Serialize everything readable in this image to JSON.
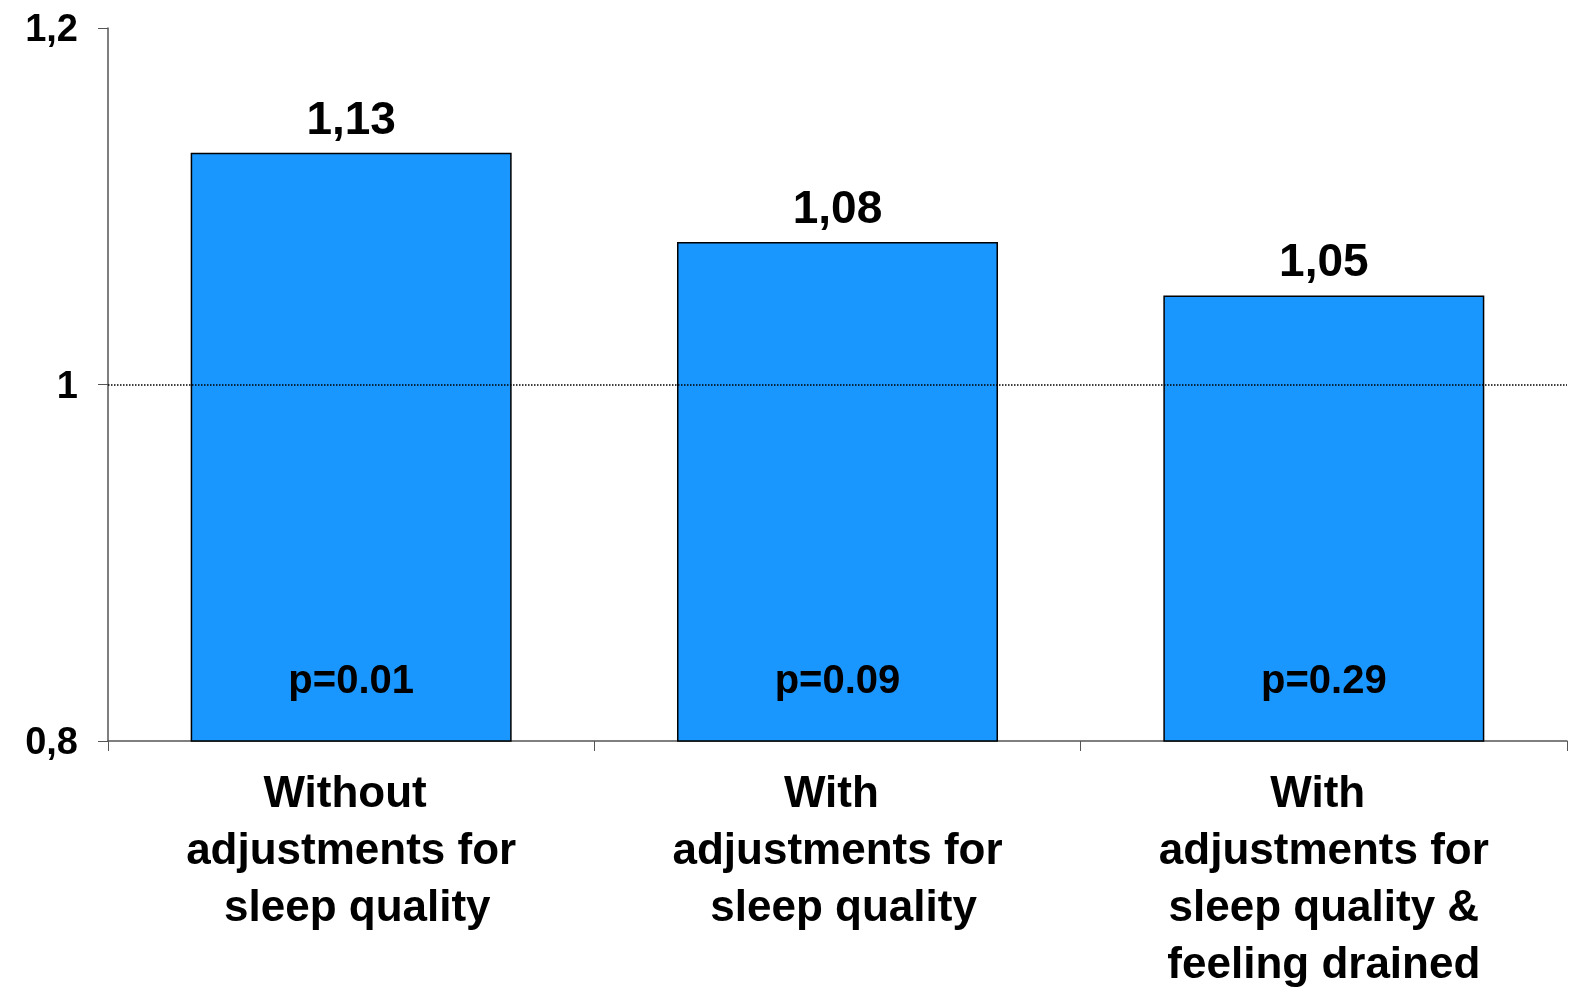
{
  "chart_data": {
    "type": "bar",
    "categories": [
      "Without adjustments for sleep quality",
      "With adjustments for sleep quality",
      "With adjustments for sleep quality & feeling drained"
    ],
    "values": [
      1.13,
      1.08,
      1.05
    ],
    "value_labels": [
      "1,13",
      "1,08",
      "1,05"
    ],
    "color": "#1a96ff",
    "ylim": [
      0.8,
      1.2
    ],
    "yticks": [
      {
        "value": 0.8,
        "label": "0,8"
      },
      1,
      {
        "value": 1.2,
        "label": "1,2"
      }
    ],
    "ref_lines": [
      {
        "axis": "y",
        "value": 1,
        "color": "#000000",
        "line_style": "dotted"
      }
    ],
    "annotations": [
      "p=0.01",
      "p=0.09",
      "p=0.29"
    ],
    "grid": false
  }
}
